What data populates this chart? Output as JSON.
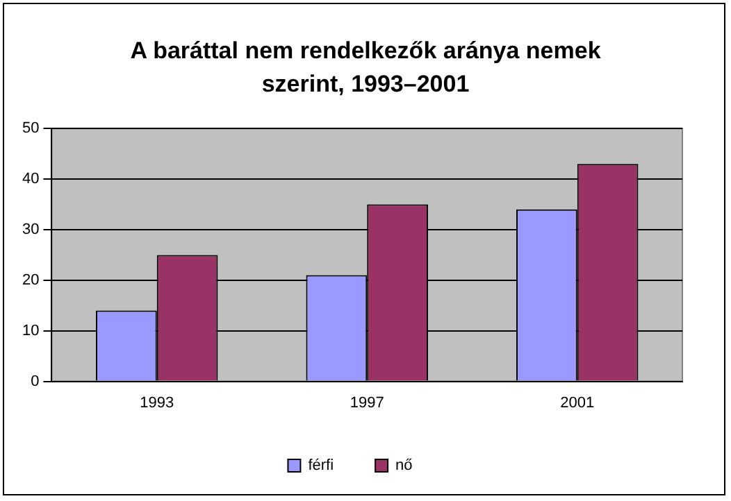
{
  "chart_data": {
    "type": "bar",
    "title": "A baráttal nem rendelkezők aránya nemek szerint, 1993–2001",
    "categories": [
      "1993",
      "1997",
      "2001"
    ],
    "series": [
      {
        "name": "férfi",
        "color": "#9999ff",
        "values": [
          14,
          21,
          34
        ]
      },
      {
        "name": "nő",
        "color": "#993366",
        "values": [
          25,
          35,
          43
        ]
      }
    ],
    "ylim": [
      0,
      50
    ],
    "yticks": [
      0,
      10,
      20,
      30,
      40,
      50
    ],
    "grid": "y",
    "legend": "bottom"
  }
}
